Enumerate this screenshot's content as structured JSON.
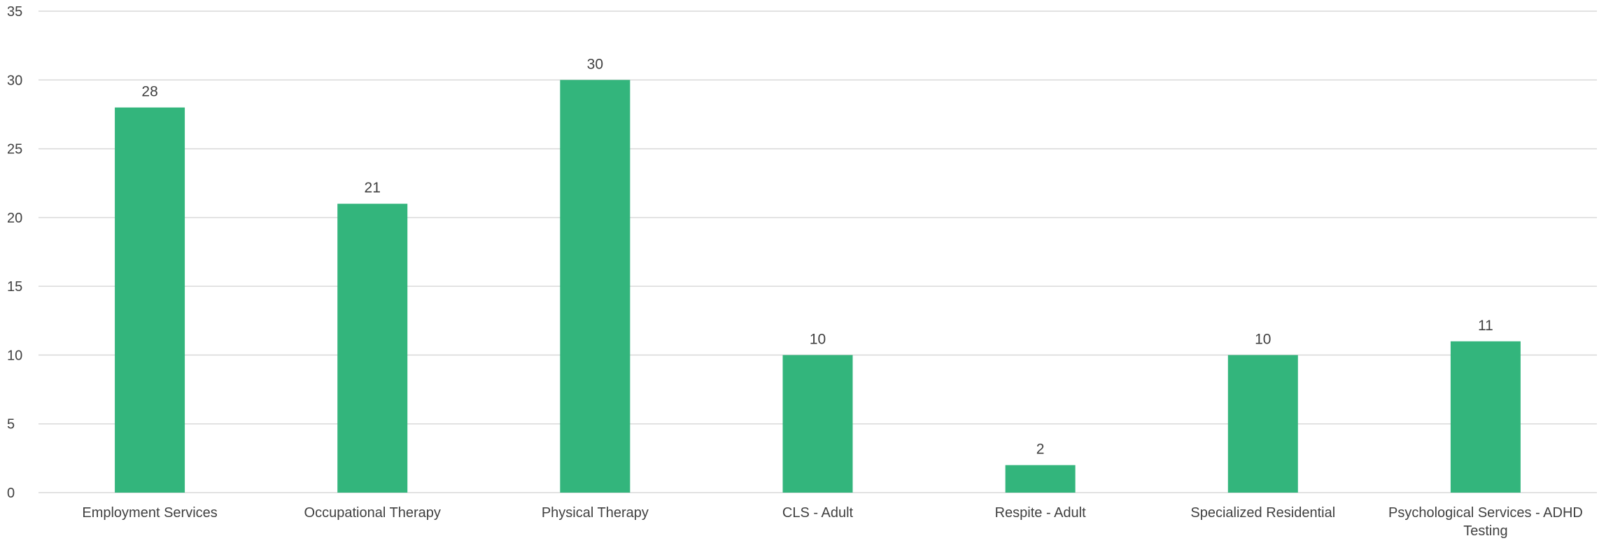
{
  "chart_data": {
    "type": "bar",
    "title": "",
    "xlabel": "",
    "ylabel": "",
    "categories": [
      [
        "Employment Services"
      ],
      [
        "Occupational Therapy"
      ],
      [
        "Physical Therapy"
      ],
      [
        "CLS - Adult"
      ],
      [
        "Respite - Adult"
      ],
      [
        "Specialized Residential"
      ],
      [
        "Psychological Services - ADHD",
        "Testing"
      ]
    ],
    "values": [
      28,
      21,
      30,
      10,
      2,
      10,
      11
    ],
    "ylim": [
      0,
      35
    ],
    "yticks": [
      "0",
      "5",
      "10",
      "15",
      "20",
      "25",
      "30",
      "35"
    ],
    "grid": true,
    "legend": "none",
    "data_labels": true,
    "colors": {
      "bar": "#33b57c",
      "grid": "#d9d9d9",
      "text": "#404040"
    }
  }
}
